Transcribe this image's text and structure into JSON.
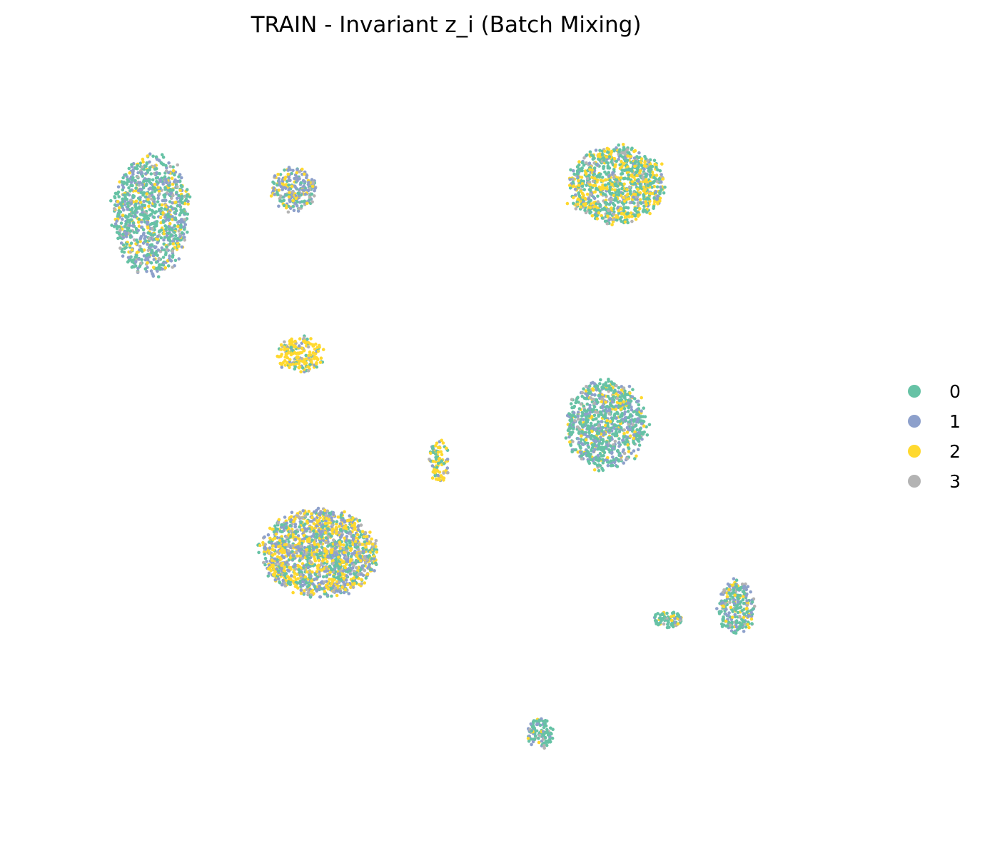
{
  "chart_data": {
    "type": "scatter",
    "title": "TRAIN - Invariant z_i (Batch Mixing)",
    "xlabel": "",
    "ylabel": "",
    "axes_visible": false,
    "grid": false,
    "legend_position": "right",
    "series": [
      {
        "name": "0",
        "color": "#66c2a5"
      },
      {
        "name": "1",
        "color": "#8da0cb"
      },
      {
        "name": "2",
        "color": "#ffd92f"
      },
      {
        "name": "3",
        "color": "#b3b3b3"
      }
    ],
    "clusters": [
      {
        "id": "top-left",
        "center": [
          -9.2,
          7.1
        ],
        "size": [
          2.3,
          3.6
        ],
        "count": 950,
        "mix": [
          0.47,
          0.3,
          0.15,
          0.08
        ]
      },
      {
        "id": "top-mid-small",
        "center": [
          -5.3,
          7.8
        ],
        "size": [
          1.4,
          1.3
        ],
        "count": 230,
        "mix": [
          0.25,
          0.48,
          0.2,
          0.07
        ]
      },
      {
        "id": "top-right",
        "center": [
          3.6,
          7.9
        ],
        "size": [
          2.9,
          2.3
        ],
        "count": 1000,
        "mix": [
          0.45,
          0.08,
          0.35,
          0.12
        ]
      },
      {
        "id": "mid-small",
        "center": [
          -5.1,
          3.3
        ],
        "size": [
          1.4,
          1.1
        ],
        "count": 220,
        "mix": [
          0.15,
          0.1,
          0.65,
          0.1
        ]
      },
      {
        "id": "mid-right",
        "center": [
          3.3,
          1.4
        ],
        "size": [
          2.4,
          2.6
        ],
        "count": 850,
        "mix": [
          0.58,
          0.25,
          0.12,
          0.05
        ]
      },
      {
        "id": "bottom-left",
        "center": [
          -4.6,
          -2.1
        ],
        "size": [
          3.5,
          2.6
        ],
        "count": 1600,
        "mix": [
          0.25,
          0.27,
          0.36,
          0.12
        ]
      },
      {
        "id": "bottom-right-a",
        "center": [
          6.9,
          -3.6
        ],
        "size": [
          1.1,
          1.6
        ],
        "count": 260,
        "mix": [
          0.5,
          0.25,
          0.13,
          0.12
        ]
      },
      {
        "id": "bottom-right-b",
        "center": [
          5.0,
          -3.9
        ],
        "size": [
          0.9,
          0.5
        ],
        "count": 80,
        "mix": [
          0.68,
          0.07,
          0.2,
          0.05
        ]
      },
      {
        "id": "bottom-tri",
        "center": [
          1.5,
          -7.0
        ],
        "size": [
          0.8,
          0.9
        ],
        "count": 110,
        "mix": [
          0.65,
          0.15,
          0.1,
          0.1
        ]
      },
      {
        "id": "bridge",
        "center": [
          -1.3,
          0.4
        ],
        "size": [
          0.6,
          1.3
        ],
        "count": 90,
        "mix": [
          0.3,
          0.1,
          0.55,
          0.05
        ]
      }
    ],
    "xlim": [
      -12,
      10
    ],
    "ylim": [
      -9,
      11
    ]
  }
}
